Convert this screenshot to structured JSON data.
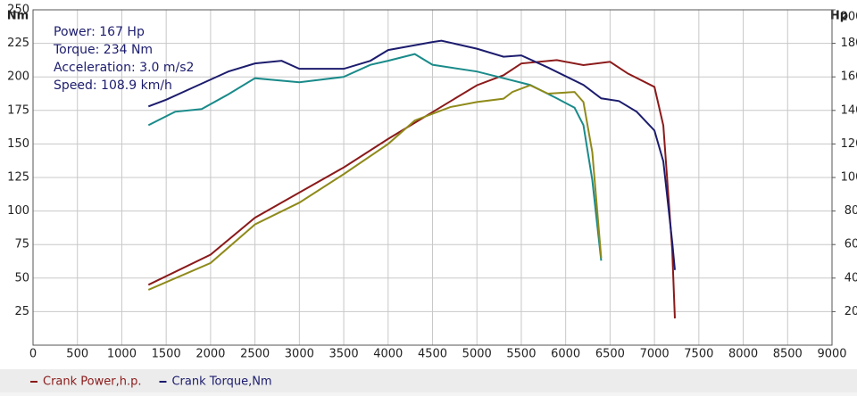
{
  "chart_data": {
    "type": "line",
    "y_label": "Nm",
    "y2_label": "Hp",
    "annotations": [
      "Power: 167 Hp",
      "Torque: 234 Nm",
      "Acceleration: 3.0 m/s2",
      "Speed: 108.9 km/h"
    ],
    "xlim": [
      0,
      9000
    ],
    "xticks": [
      0,
      500,
      1000,
      1500,
      2000,
      2500,
      3000,
      3500,
      4000,
      4500,
      5000,
      5500,
      6000,
      6500,
      7000,
      7500,
      8000,
      8500,
      9000
    ],
    "ylim": [
      0,
      250
    ],
    "yticks": [
      25,
      50,
      75,
      100,
      125,
      150,
      175,
      200,
      225,
      250
    ],
    "y2lim": [
      0,
      200
    ],
    "y2ticks": [
      20,
      40,
      60,
      80,
      100,
      120,
      140,
      160,
      180,
      200
    ],
    "grid": true,
    "series": [
      {
        "name": "Crank Power,h.p.",
        "color": "#8b1a1a",
        "axis": "y2",
        "x": [
          1300,
          2000,
          2500,
          3000,
          3500,
          4000,
          4500,
          5000,
          5300,
          5500,
          5900,
          6200,
          6500,
          6700,
          7000,
          7100,
          7200,
          7230
        ],
        "values": [
          36,
          54,
          76,
          91,
          106,
          123,
          139,
          155,
          161,
          168,
          170,
          167,
          169,
          162,
          154,
          131,
          57,
          16
        ]
      },
      {
        "name": "Crank Torque,Nm",
        "color": "#1c1c6e",
        "x": [
          1300,
          1500,
          1800,
          2200,
          2500,
          2800,
          3000,
          3500,
          3800,
          4000,
          4500,
          4600,
          5000,
          5300,
          5500,
          5800,
          6200,
          6400,
          6600,
          6800,
          7000,
          7100,
          7200,
          7230
        ],
        "values": [
          178,
          183,
          192,
          204,
          210,
          212,
          206,
          206,
          212,
          220,
          226,
          227,
          221,
          215,
          216,
          207,
          194,
          184,
          182,
          174,
          160,
          137,
          77,
          56
        ]
      },
      {
        "color": "#1a8a8a",
        "x": [
          1300,
          1600,
          1900,
          2200,
          2500,
          3000,
          3500,
          3800,
          4000,
          4300,
          4500,
          5000,
          5300,
          5600,
          5900,
          6100,
          6200,
          6300,
          6400
        ],
        "values": [
          164,
          174,
          176,
          187,
          199,
          196,
          200,
          209,
          212,
          217,
          209,
          204,
          199,
          194,
          184,
          177,
          164,
          123,
          63
        ]
      },
      {
        "color": "#8f8a1a",
        "axis": "y2",
        "x": [
          1300,
          2000,
          2500,
          3000,
          3500,
          4000,
          4300,
          4700,
          5000,
          5300,
          5400,
          5600,
          5800,
          6100,
          6200,
          6300,
          6400
        ],
        "values": [
          33,
          49,
          72,
          85,
          102,
          120,
          134,
          142,
          145,
          147,
          151,
          155,
          150,
          151,
          145,
          115,
          52
        ]
      }
    ]
  }
}
